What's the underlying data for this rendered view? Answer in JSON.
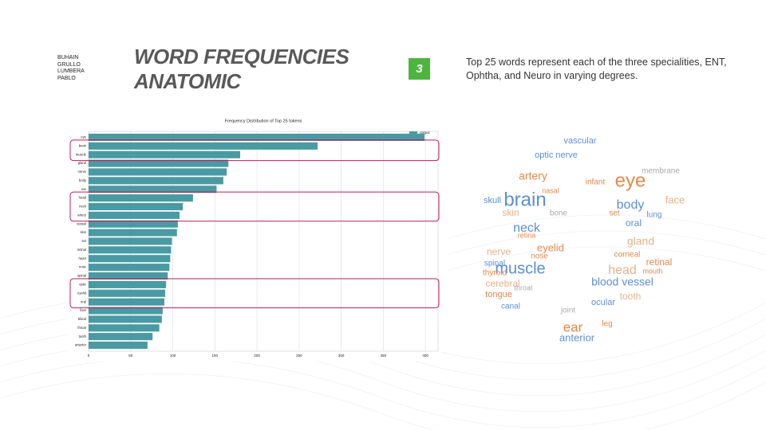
{
  "authors": [
    "BUHAIN",
    "GRULLO",
    "LUMBERA",
    "PABLO"
  ],
  "title": [
    "WORD FREQUENCIES",
    "ANATOMIC"
  ],
  "slide_number": "3",
  "description": "Top 25 words represent each of the three specialities, ENT, Ophtha, and Neuro in varying degrees.",
  "chart_data": {
    "type": "barh",
    "title": "Frequency Distribution of Top 25 tokens",
    "categories": [
      "eye",
      "brain",
      "muscle",
      "gland",
      "nerve",
      "body",
      "ear",
      "head",
      "neck",
      "artery",
      "vessel",
      "skin",
      "set",
      "retinal",
      "heart",
      "nose",
      "spinal",
      "optic",
      "eyelid",
      "oral",
      "face",
      "blood",
      "throat",
      "tooth",
      "anterior"
    ],
    "series": [
      {
        "name": "corpus",
        "color": "#4a9aa3",
        "values": [
          399,
          272,
          180,
          166,
          164,
          160,
          152,
          124,
          112,
          108,
          106,
          105,
          99,
          98,
          97,
          96,
          94,
          92,
          91,
          90,
          88,
          87,
          84,
          76,
          70
        ]
      }
    ],
    "xlim": [
      0,
      415
    ],
    "xticks": [
      0,
      50,
      100,
      150,
      200,
      250,
      300,
      350,
      400
    ],
    "grid": true,
    "legend": "upper right"
  },
  "wordcloud": {
    "words": [
      "brain",
      "muscle",
      "eye",
      "neck",
      "body",
      "head",
      "ear",
      "artery",
      "blood vessel",
      "gland",
      "anterior",
      "tooth",
      "optic nerve",
      "vascular",
      "face",
      "oral",
      "retinal",
      "skull",
      "nerve",
      "eyelid",
      "cerebral",
      "tongue",
      "thyroid",
      "ocular",
      "spinal",
      "lung",
      "infant",
      "corneal",
      "skin",
      "bone",
      "canal",
      "nose",
      "throat",
      "membrane",
      "leg",
      "joint",
      "mouth",
      "set",
      "nasal",
      "retina"
    ]
  }
}
